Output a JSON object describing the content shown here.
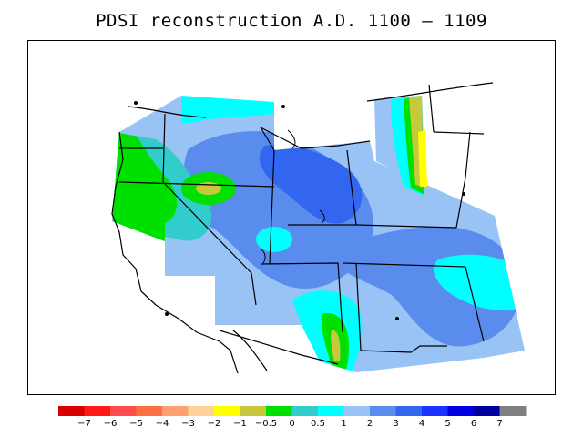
{
  "title": "PDSI reconstruction A.D. 1100 – 1109",
  "colors": {
    "deep_blue": "#3366ee",
    "mid_blue": "#5a8cee",
    "light_blue": "#99c2f5",
    "cyan": "#00ffff",
    "teal": "#33cccc",
    "green": "#00ee00",
    "olive": "#cccc33",
    "yellow": "#ffff00",
    "boundary": "#000000"
  },
  "legend": {
    "swatches": [
      "#d90000",
      "#ff1a1a",
      "#ff4d4d",
      "#ff7040",
      "#ffa070",
      "#ffd29a",
      "#ffff00",
      "#c8c83c",
      "#00e000",
      "#33cccc",
      "#00ffff",
      "#99c2f5",
      "#5a8cee",
      "#3366ee",
      "#1a33ff",
      "#0000e0",
      "#0000a0",
      "#808080"
    ],
    "ticks": [
      "−7",
      "−6",
      "−5",
      "−4",
      "−3",
      "−2",
      "−1",
      "−0.5",
      "0",
      "0.5",
      "1",
      "2",
      "3",
      "4",
      "5",
      "6",
      "7"
    ]
  }
}
